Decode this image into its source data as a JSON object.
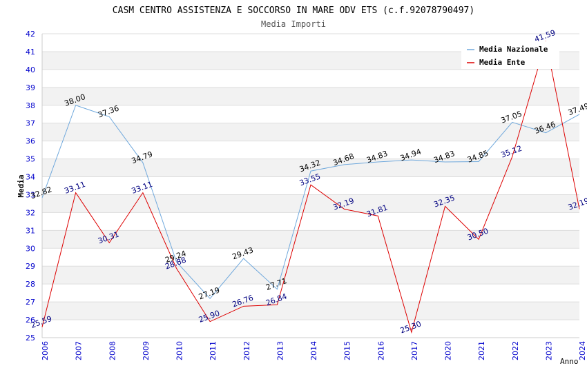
{
  "chart_data": {
    "type": "line",
    "title": "CASM CENTRO ASSISTENZA E SOCCORSO IN MARE ODV ETS (c.f.92078790497)",
    "subtitle": "Media Importi",
    "xlabel": "Anno",
    "ylabel": "Media",
    "ylim": [
      25,
      42
    ],
    "categories": [
      "2006",
      "2007",
      "2008",
      "2009",
      "2010",
      "2011",
      "2012",
      "2013",
      "2014",
      "2015",
      "2016",
      "2017",
      "2020",
      "2021",
      "2022",
      "2023",
      "2024"
    ],
    "series": [
      {
        "name": "Media Nazionale",
        "color": "#6fa8dc",
        "label_color": "#000000",
        "values": [
          32.82,
          38.0,
          37.36,
          34.79,
          29.24,
          27.19,
          29.43,
          27.71,
          34.32,
          34.68,
          34.83,
          34.94,
          34.83,
          34.85,
          37.05,
          36.46,
          37.49
        ],
        "labels": [
          "32.82",
          "38.00",
          "37.36",
          "34.79",
          "29.24",
          "27.19",
          "29.43",
          "27.71",
          "34.32",
          "34.68",
          "34.83",
          "34.94",
          "34.83",
          "34.85",
          "37.05",
          "36.46",
          "37.49"
        ]
      },
      {
        "name": "Media Ente",
        "color": "#dd0000",
        "label_color": "#000080",
        "values": [
          25.59,
          33.11,
          30.31,
          33.11,
          28.88,
          25.9,
          26.76,
          26.84,
          33.55,
          32.19,
          31.81,
          25.3,
          32.35,
          30.5,
          35.12,
          41.59,
          32.19
        ],
        "labels": [
          "25.59",
          "33.11",
          "30.31",
          "33.11",
          "28.88",
          "25.90",
          "26.76",
          "26.84",
          "33.55",
          "32.19",
          "31.81",
          "25.30",
          "32.35",
          "30.50",
          "35.12",
          "41.59",
          "32.19"
        ]
      }
    ],
    "y_ticks": [
      "25",
      "26",
      "27",
      "28",
      "29",
      "30",
      "31",
      "32",
      "33",
      "34",
      "35",
      "36",
      "37",
      "38",
      "39",
      "40",
      "41",
      "42"
    ],
    "legend_position": "top-right",
    "grid": true
  },
  "colors": {
    "axis_text": "#0000cc",
    "band": "#f2f2f2",
    "gridline": "#dddddd"
  }
}
